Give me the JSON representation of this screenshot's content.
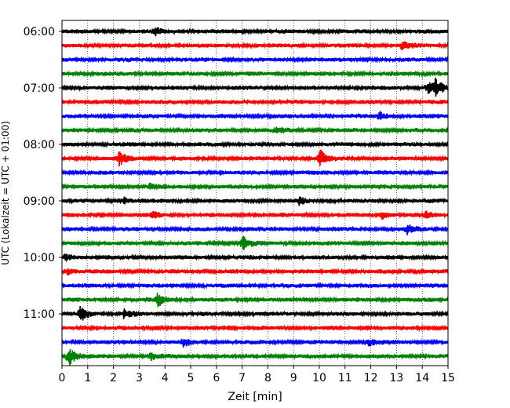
{
  "chart_data": {
    "type": "line",
    "title": "",
    "xlabel": "Zeit  [min]",
    "ylabel": "UTC (Lokalzeit = UTC + 01:00)",
    "xlim": [
      0,
      15
    ],
    "x_ticks": [
      0,
      1,
      2,
      3,
      4,
      5,
      6,
      7,
      8,
      9,
      10,
      11,
      12,
      13,
      14,
      15
    ],
    "y_tick_labels": [
      "06:00",
      "07:00",
      "08:00",
      "09:00",
      "10:00",
      "11:00"
    ],
    "row_interval_min": 15,
    "first_row": "06:00",
    "row_count": 24,
    "grid": "vertical-dotted",
    "colors": [
      "#000000",
      "#ff0000",
      "#0000ff",
      "#008000"
    ],
    "events": [
      {
        "row": 0,
        "min": 3.6,
        "amp": 0.9
      },
      {
        "row": 1,
        "min": 13.2,
        "amp": 1.2
      },
      {
        "row": 4,
        "min": 14.2,
        "amp": 2.0
      },
      {
        "row": 4,
        "min": 14.5,
        "amp": 1.6
      },
      {
        "row": 6,
        "min": 12.3,
        "amp": 1.2
      },
      {
        "row": 7,
        "min": 8.3,
        "amp": 0.8
      },
      {
        "row": 9,
        "min": 2.2,
        "amp": 1.8
      },
      {
        "row": 9,
        "min": 10.0,
        "amp": 2.2
      },
      {
        "row": 11,
        "min": 3.4,
        "amp": 0.7
      },
      {
        "row": 12,
        "min": 2.4,
        "amp": 0.9
      },
      {
        "row": 12,
        "min": 9.2,
        "amp": 0.8
      },
      {
        "row": 13,
        "min": 3.5,
        "amp": 0.9
      },
      {
        "row": 13,
        "min": 12.4,
        "amp": 1.1
      },
      {
        "row": 13,
        "min": 14.1,
        "amp": 0.8
      },
      {
        "row": 14,
        "min": 13.4,
        "amp": 1.2
      },
      {
        "row": 14,
        "min": 6.9,
        "amp": 0.7
      },
      {
        "row": 15,
        "min": 7.0,
        "amp": 1.8
      },
      {
        "row": 16,
        "min": 0.1,
        "amp": 1.2
      },
      {
        "row": 17,
        "min": 0.2,
        "amp": 0.9
      },
      {
        "row": 19,
        "min": 3.7,
        "amp": 1.7
      },
      {
        "row": 20,
        "min": 0.7,
        "amp": 2.2
      },
      {
        "row": 20,
        "min": 2.4,
        "amp": 1.0
      },
      {
        "row": 22,
        "min": 4.7,
        "amp": 1.0
      },
      {
        "row": 22,
        "min": 11.9,
        "amp": 0.9
      },
      {
        "row": 23,
        "min": 0.25,
        "amp": 2.6
      },
      {
        "row": 23,
        "min": 3.4,
        "amp": 1.1
      }
    ]
  }
}
